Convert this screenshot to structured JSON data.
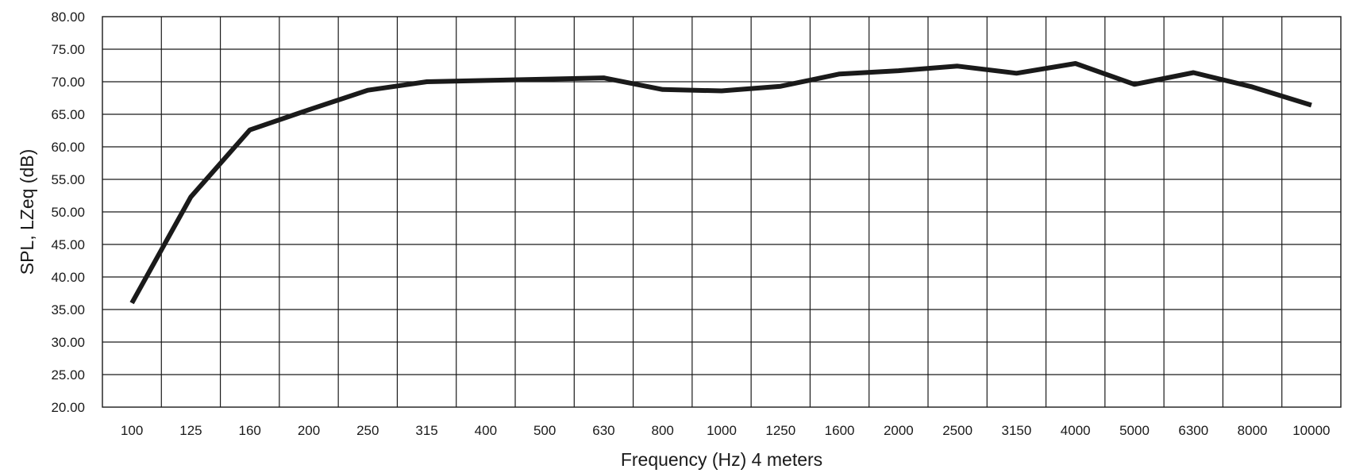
{
  "chart_data": {
    "type": "line",
    "xlabel": "Frequency (Hz) 4 meters",
    "ylabel": "SPL, LZeq (dB)",
    "categories": [
      "100",
      "125",
      "160",
      "200",
      "250",
      "315",
      "400",
      "500",
      "630",
      "800",
      "1000",
      "1250",
      "1600",
      "2000",
      "2500",
      "3150",
      "4000",
      "5000",
      "6300",
      "8000",
      "10000"
    ],
    "y_ticks": [
      "20.00",
      "25.00",
      "30.00",
      "35.00",
      "40.00",
      "45.00",
      "50.00",
      "55.00",
      "60.00",
      "65.00",
      "70.00",
      "75.00",
      "80.00"
    ],
    "ylim": [
      20,
      80
    ],
    "grid": true,
    "series": [
      {
        "values": [
          36.0,
          52.3,
          62.6,
          65.7,
          68.7,
          70.0,
          70.2,
          70.4,
          70.6,
          68.8,
          68.6,
          69.3,
          71.2,
          71.7,
          72.4,
          71.3,
          72.8,
          69.6,
          71.4,
          69.2,
          66.4
        ],
        "color": "#1a1a1a"
      }
    ]
  }
}
